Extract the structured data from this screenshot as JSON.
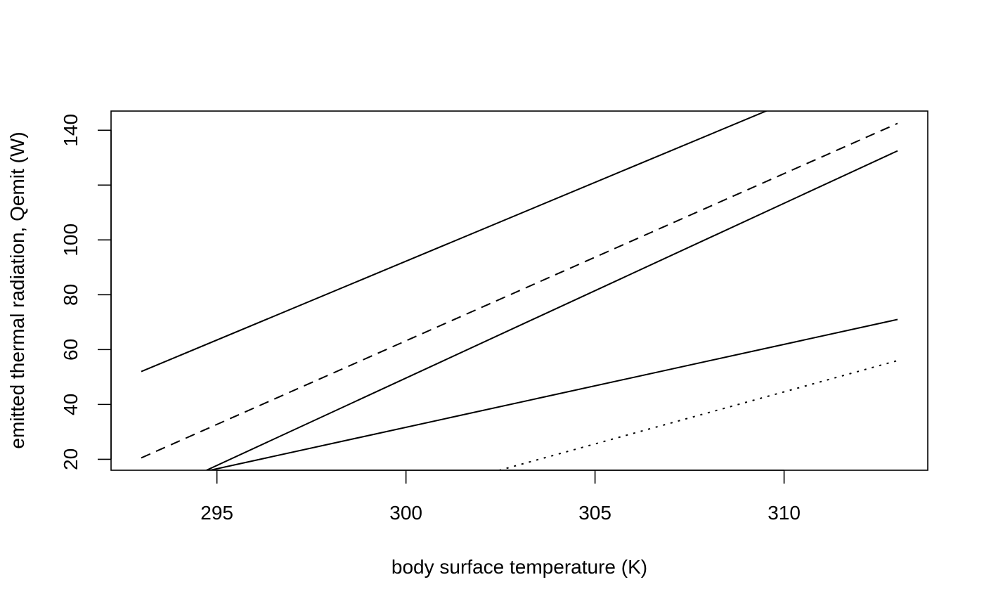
{
  "chart_data": {
    "type": "line",
    "title": "",
    "xlabel": "body surface temperature (K)",
    "ylabel": "emitted thermal radiation, Qemit (W)",
    "xlim": [
      292.2,
      313.8
    ],
    "ylim": [
      16,
      147
    ],
    "x_ticks": [
      295,
      300,
      305,
      310
    ],
    "y_ticks": [
      20,
      40,
      60,
      80,
      100,
      120,
      140
    ],
    "y_tick_labels": [
      "20",
      "40",
      "60",
      "80",
      "100",
      "",
      "140"
    ],
    "grid": false,
    "legend": null,
    "series": [
      {
        "line_style": "solid",
        "x": [
          293,
          313
        ],
        "y": [
          52,
          167
        ]
      },
      {
        "line_style": "dashed",
        "x": [
          293,
          313
        ],
        "y": [
          20.5,
          142.5
        ]
      },
      {
        "line_style": "solid",
        "x": [
          293,
          313
        ],
        "y": [
          5,
          132.5
        ]
      },
      {
        "line_style": "solid",
        "x": [
          293,
          313
        ],
        "y": [
          10.5,
          71
        ]
      },
      {
        "line_style": "dotted",
        "x": [
          293,
          313
        ],
        "y": [
          -20,
          56
        ]
      }
    ]
  }
}
